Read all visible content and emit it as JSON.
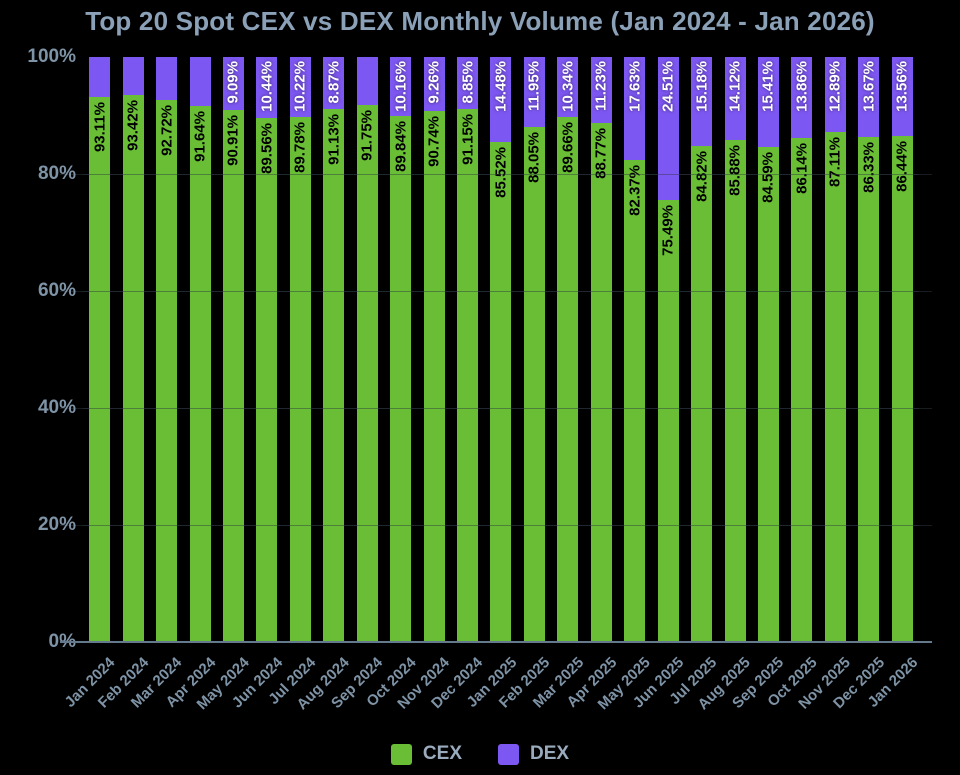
{
  "title": "Top 20 Spot CEX vs DEX Monthly Volume (Jan 2024 - Jan 2026)",
  "colors": {
    "background": "#000000",
    "cex": "#69be35",
    "dex": "#7d57f1",
    "title_text": "#8ba1b8",
    "axis_text": "#7e93a6",
    "axis_line": "#647a8c",
    "legend_text": "#9aabbd",
    "label_on_green": "#000000",
    "label_on_purple": "#ffffff"
  },
  "legend": {
    "items": [
      {
        "label": "CEX",
        "color": "#69be35"
      },
      {
        "label": "DEX",
        "color": "#7d57f1"
      }
    ]
  },
  "chart_data": {
    "type": "bar",
    "stacked": true,
    "percent": true,
    "title": "Top 20 Spot CEX vs DEX Monthly Volume (Jan 2024 - Jan 2026)",
    "categories": [
      "Jan 2024",
      "Feb 2024",
      "Mar 2024",
      "Apr 2024",
      "May 2024",
      "Jun 2024",
      "Jul 2024",
      "Aug 2024",
      "Sep 2024",
      "Oct 2024",
      "Nov 2024",
      "Dec 2024",
      "Jan 2025",
      "Feb 2025",
      "Mar 2025",
      "Apr 2025",
      "May 2025",
      "Jun 2025",
      "Jul 2025",
      "Aug 2025",
      "Sep 2025",
      "Oct 2025",
      "Nov 2025",
      "Dec 2025",
      "Jan 2026"
    ],
    "series": [
      {
        "name": "CEX",
        "color": "#69be35",
        "values": [
          93.11,
          93.42,
          92.72,
          91.64,
          90.91,
          89.56,
          89.78,
          91.13,
          91.75,
          89.84,
          90.74,
          91.15,
          85.52,
          88.05,
          89.66,
          88.77,
          82.37,
          75.49,
          84.82,
          85.88,
          84.59,
          86.14,
          87.11,
          86.33,
          86.44
        ]
      },
      {
        "name": "DEX",
        "color": "#7d57f1",
        "values": [
          6.89,
          6.58,
          7.28,
          8.36,
          9.09,
          10.44,
          10.22,
          8.87,
          8.25,
          10.16,
          9.26,
          8.85,
          14.48,
          11.95,
          10.34,
          11.23,
          17.63,
          24.51,
          15.18,
          14.12,
          15.41,
          13.86,
          12.89,
          13.67,
          13.56
        ],
        "labels_hidden_for": [
          "Jan 2024",
          "Feb 2024",
          "Mar 2024",
          "Apr 2024",
          "Sep 2024"
        ]
      }
    ],
    "value_label_format": "0.00%",
    "ylim": [
      0,
      100
    ],
    "y_tick_labels": [
      "0%",
      "20%",
      "40%",
      "60%",
      "80%",
      "100%"
    ],
    "grid": "horizontal-faint",
    "legend_position": "bottom-center",
    "x_tick_rotation_deg": 45
  }
}
